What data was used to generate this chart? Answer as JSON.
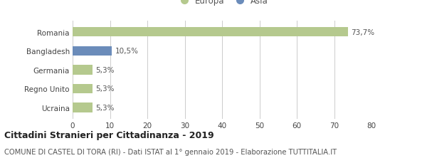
{
  "categories": [
    "Romania",
    "Bangladesh",
    "Germania",
    "Regno Unito",
    "Ucraina"
  ],
  "values": [
    73.7,
    10.5,
    5.3,
    5.3,
    5.3
  ],
  "labels": [
    "73,7%",
    "10,5%",
    "5,3%",
    "5,3%",
    "5,3%"
  ],
  "colors": [
    "#b5c98e",
    "#6b8cba",
    "#b5c98e",
    "#b5c98e",
    "#b5c98e"
  ],
  "legend": [
    {
      "label": "Europa",
      "color": "#b5c98e"
    },
    {
      "label": "Asia",
      "color": "#6b8cba"
    }
  ],
  "xlim": [
    0,
    80
  ],
  "xticks": [
    0,
    10,
    20,
    30,
    40,
    50,
    60,
    70,
    80
  ],
  "title": "Cittadini Stranieri per Cittadinanza - 2019",
  "subtitle": "COMUNE DI CASTEL DI TORA (RI) - Dati ISTAT al 1° gennaio 2019 - Elaborazione TUTTITALIA.IT",
  "title_fontsize": 9.0,
  "subtitle_fontsize": 7.2,
  "bar_height": 0.5,
  "background_color": "#ffffff",
  "grid_color": "#cccccc",
  "tick_label_fontsize": 7.5,
  "bar_label_fontsize": 7.5,
  "legend_fontsize": 8.5,
  "legend_marker_size": 9
}
